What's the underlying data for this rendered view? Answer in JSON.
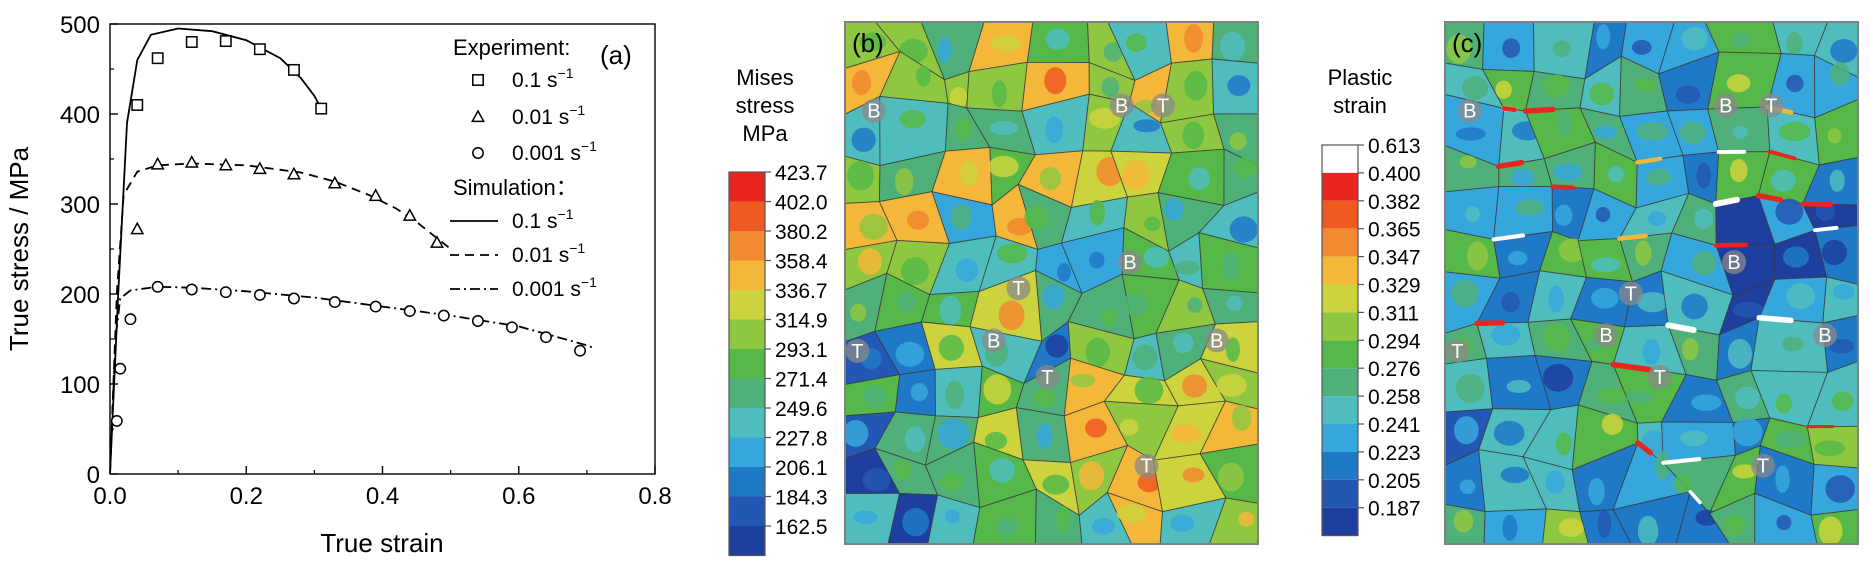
{
  "chart_data": [
    {
      "panel": "(a)",
      "type": "scatter",
      "xlabel": "True strain",
      "ylabel": "True stress / MPa",
      "xlim": [
        0,
        0.8
      ],
      "ylim": [
        0,
        500
      ],
      "xticks": [
        "0.0",
        "0.2",
        "0.4",
        "0.6",
        "0.8"
      ],
      "yticks": [
        "0",
        "100",
        "200",
        "300",
        "400",
        "500"
      ],
      "legend": {
        "position": "top-right",
        "experiment_title": "Experiment:",
        "simulation_title": "Simulation：",
        "rates": [
          "0.1 s",
          "0.01 s",
          "0.001 s"
        ],
        "unit_exp": "−1"
      },
      "experiment": [
        {
          "rate": "0.1 s⁻¹",
          "marker": "square",
          "points": [
            [
              0.04,
              410
            ],
            [
              0.07,
              462
            ],
            [
              0.12,
              480
            ],
            [
              0.17,
              481
            ],
            [
              0.22,
              472
            ],
            [
              0.27,
              449
            ],
            [
              0.31,
              406
            ]
          ]
        },
        {
          "rate": "0.01 s⁻¹",
          "marker": "triangle",
          "points": [
            [
              0.04,
              272
            ],
            [
              0.07,
              344
            ],
            [
              0.12,
              346
            ],
            [
              0.17,
              343
            ],
            [
              0.22,
              339
            ],
            [
              0.27,
              333
            ],
            [
              0.33,
              323
            ],
            [
              0.39,
              309
            ],
            [
              0.44,
              287
            ],
            [
              0.48,
              257
            ]
          ]
        },
        {
          "rate": "0.001 s⁻¹",
          "marker": "circle",
          "points": [
            [
              0.01,
              59
            ],
            [
              0.015,
              117
            ],
            [
              0.03,
              172
            ],
            [
              0.07,
              208
            ],
            [
              0.12,
              205
            ],
            [
              0.17,
              202
            ],
            [
              0.22,
              199
            ],
            [
              0.27,
              195
            ],
            [
              0.33,
              191
            ],
            [
              0.39,
              186
            ],
            [
              0.44,
              181
            ],
            [
              0.49,
              176
            ],
            [
              0.54,
              170
            ],
            [
              0.59,
              163
            ],
            [
              0.64,
              152
            ],
            [
              0.69,
              137
            ]
          ]
        }
      ],
      "simulation": [
        {
          "rate": "0.1 s⁻¹",
          "style": "solid",
          "points": [
            [
              0,
              0
            ],
            [
              0.012,
              200
            ],
            [
              0.025,
              390
            ],
            [
              0.04,
              460
            ],
            [
              0.06,
              488
            ],
            [
              0.1,
              495
            ],
            [
              0.15,
              492
            ],
            [
              0.2,
              482
            ],
            [
              0.25,
              462
            ],
            [
              0.28,
              440
            ],
            [
              0.3,
              420
            ],
            [
              0.31,
              406
            ]
          ]
        },
        {
          "rate": "0.01 s⁻¹",
          "style": "dashed",
          "points": [
            [
              0,
              0
            ],
            [
              0.01,
              200
            ],
            [
              0.02,
              310
            ],
            [
              0.04,
              336
            ],
            [
              0.07,
              343
            ],
            [
              0.12,
              345
            ],
            [
              0.2,
              343
            ],
            [
              0.28,
              335
            ],
            [
              0.33,
              325
            ],
            [
              0.38,
              310
            ],
            [
              0.42,
              295
            ],
            [
              0.45,
              280
            ],
            [
              0.48,
              262
            ],
            [
              0.5,
              250
            ]
          ]
        },
        {
          "rate": "0.001 s⁻¹",
          "style": "dash-dot",
          "points": [
            [
              0,
              0
            ],
            [
              0.008,
              150
            ],
            [
              0.015,
              195
            ],
            [
              0.03,
              204
            ],
            [
              0.07,
              208
            ],
            [
              0.12,
              207
            ],
            [
              0.2,
              203
            ],
            [
              0.3,
              196
            ],
            [
              0.4,
              186
            ],
            [
              0.5,
              176
            ],
            [
              0.6,
              164
            ],
            [
              0.7,
              143
            ],
            [
              0.71,
              140
            ]
          ]
        }
      ]
    },
    {
      "panel": "(b)",
      "type": "heatmap",
      "colorbar_title": [
        "Mises",
        "stress",
        "MPa"
      ],
      "colorbar_values": [
        "423.7",
        "402.0",
        "380.2",
        "358.4",
        "336.7",
        "314.9",
        "293.1",
        "271.4",
        "249.6",
        "227.8",
        "206.1",
        "184.3",
        "162.5"
      ],
      "colorbar_colors": [
        "#e8261f",
        "#ef5a22",
        "#f18a30",
        "#f3b739",
        "#cdd33d",
        "#8fc741",
        "#55b848",
        "#4fb07a",
        "#4fbdbe",
        "#36a7dc",
        "#1f79c7",
        "#2457b3",
        "#1f3f9f"
      ],
      "labels": [
        {
          "t": "B",
          "x": 0.07,
          "y": 0.17
        },
        {
          "t": "B",
          "x": 0.67,
          "y": 0.16
        },
        {
          "t": "T",
          "x": 0.77,
          "y": 0.16
        },
        {
          "t": "B",
          "x": 0.69,
          "y": 0.46
        },
        {
          "t": "T",
          "x": 0.42,
          "y": 0.51
        },
        {
          "t": "B",
          "x": 0.36,
          "y": 0.61
        },
        {
          "t": "T",
          "x": 0.03,
          "y": 0.63
        },
        {
          "t": "B",
          "x": 0.9,
          "y": 0.61
        },
        {
          "t": "T",
          "x": 0.49,
          "y": 0.68
        },
        {
          "t": "T",
          "x": 0.73,
          "y": 0.85
        }
      ]
    },
    {
      "panel": "(c)",
      "type": "heatmap",
      "colorbar_title": [
        "Plastic",
        "strain"
      ],
      "colorbar_values": [
        "0.613",
        "0.400",
        "0.382",
        "0.365",
        "0.347",
        "0.329",
        "0.311",
        "0.294",
        "0.276",
        "0.258",
        "0.241",
        "0.223",
        "0.205",
        "0.187"
      ],
      "colorbar_colors": [
        "#ffffff",
        "#e8261f",
        "#ef5a22",
        "#f18a30",
        "#f3b739",
        "#cdd33d",
        "#8fc741",
        "#55b848",
        "#4fb07a",
        "#4fbdbe",
        "#36a7dc",
        "#1f79c7",
        "#2457b3",
        "#1f3f9f"
      ],
      "labels": [
        {
          "t": "B",
          "x": 0.06,
          "y": 0.17
        },
        {
          "t": "B",
          "x": 0.68,
          "y": 0.16
        },
        {
          "t": "T",
          "x": 0.79,
          "y": 0.16
        },
        {
          "t": "B",
          "x": 0.7,
          "y": 0.46
        },
        {
          "t": "T",
          "x": 0.45,
          "y": 0.52
        },
        {
          "t": "B",
          "x": 0.39,
          "y": 0.6
        },
        {
          "t": "T",
          "x": 0.03,
          "y": 0.63
        },
        {
          "t": "B",
          "x": 0.92,
          "y": 0.6
        },
        {
          "t": "T",
          "x": 0.52,
          "y": 0.68
        },
        {
          "t": "T",
          "x": 0.77,
          "y": 0.85
        }
      ]
    }
  ],
  "colors": {
    "axis": "#000000",
    "map_outline": "#808080",
    "grain_line": "#333333",
    "label_bg": "#8a8a8a",
    "label_text": "#ffffff"
  }
}
